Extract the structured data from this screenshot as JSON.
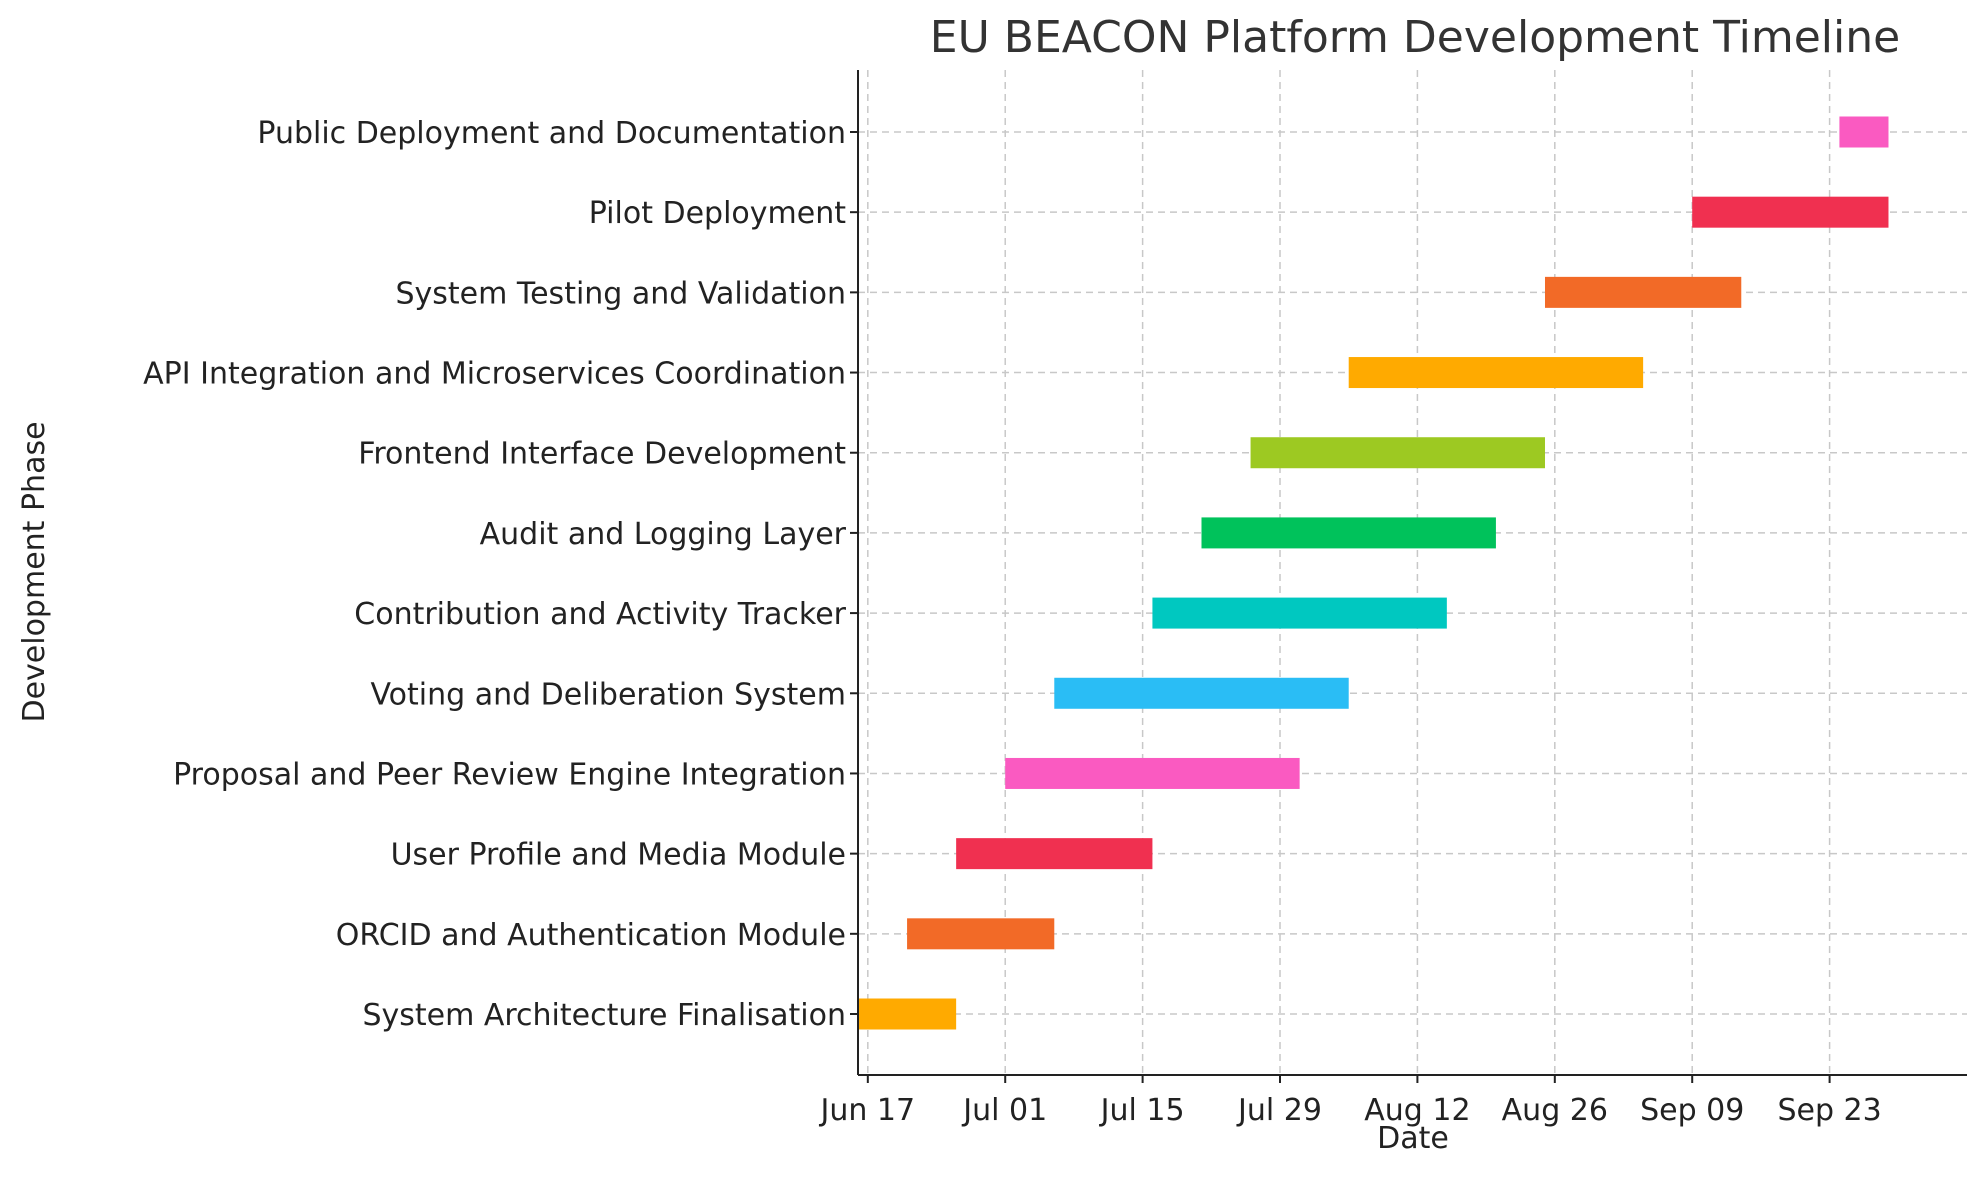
{
  "chart_data": {
    "type": "bar",
    "orientation": "horizontal-gantt",
    "title": "EU BEACON Platform Development Timeline",
    "xlabel": "Date",
    "ylabel": "Development Phase",
    "grid": true,
    "xlim": [
      "2025-06-16",
      "2025-10-07"
    ],
    "x_ticks": [
      {
        "date": "2025-06-17",
        "label": "Jun 17"
      },
      {
        "date": "2025-07-01",
        "label": "Jul 01"
      },
      {
        "date": "2025-07-15",
        "label": "Jul 15"
      },
      {
        "date": "2025-07-29",
        "label": "Jul 29"
      },
      {
        "date": "2025-08-12",
        "label": "Aug 12"
      },
      {
        "date": "2025-08-26",
        "label": "Aug 26"
      },
      {
        "date": "2025-09-09",
        "label": "Sep 09"
      },
      {
        "date": "2025-09-23",
        "label": "Sep 23"
      }
    ],
    "tasks": [
      {
        "name": "System Architecture Finalisation",
        "start": "2025-06-16",
        "end": "2025-06-26",
        "color": "#FFAA00"
      },
      {
        "name": "ORCID and Authentication Module",
        "start": "2025-06-21",
        "end": "2025-07-06",
        "color": "#F26A27"
      },
      {
        "name": "User Profile and Media Module",
        "start": "2025-06-26",
        "end": "2025-07-16",
        "color": "#F03050"
      },
      {
        "name": "Proposal and Peer Review Engine Integration",
        "start": "2025-07-01",
        "end": "2025-07-31",
        "color": "#FA5AC1"
      },
      {
        "name": "Voting and Deliberation System",
        "start": "2025-07-06",
        "end": "2025-08-05",
        "color": "#2ABDF5"
      },
      {
        "name": "Contribution and Activity Tracker",
        "start": "2025-07-16",
        "end": "2025-08-15",
        "color": "#00C8C0"
      },
      {
        "name": "Audit and Logging Layer",
        "start": "2025-07-21",
        "end": "2025-08-20",
        "color": "#00C25B"
      },
      {
        "name": "Frontend Interface Development",
        "start": "2025-07-26",
        "end": "2025-08-25",
        "color": "#9DC922"
      },
      {
        "name": "API Integration and Microservices Coordination",
        "start": "2025-08-05",
        "end": "2025-09-04",
        "color": "#FFAA00"
      },
      {
        "name": "System Testing and Validation",
        "start": "2025-08-25",
        "end": "2025-09-14",
        "color": "#F26A27"
      },
      {
        "name": "Pilot Deployment",
        "start": "2025-09-09",
        "end": "2025-09-29",
        "color": "#F03050"
      },
      {
        "name": "Public Deployment and Documentation",
        "start": "2025-09-24",
        "end": "2025-09-29",
        "color": "#FA5AC1"
      }
    ]
  }
}
